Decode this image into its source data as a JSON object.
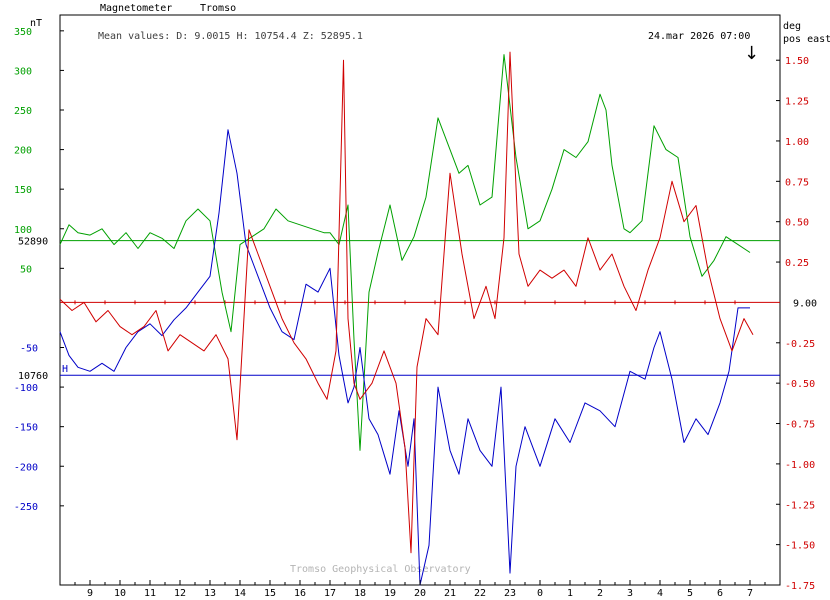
{
  "header": {
    "instrument": "Magnetometer",
    "station": "Tromso",
    "left_unit": "nT",
    "right_unit_1": "deg",
    "right_unit_2": "pos east",
    "mean_values": "Mean values:  D: 9.0015   H: 10754.4   Z: 52895.1",
    "timestamp": "24.mar 2026 07:00",
    "arrow": "↓",
    "footer": "Tromso Geophysical Observatory"
  },
  "colors": {
    "green": "#00a000",
    "blue": "#0000c8",
    "red": "#d00000",
    "frame": "#000000",
    "footer": "#b4b4b4"
  },
  "chart_data": {
    "type": "line",
    "x_label": "",
    "x_ticks": [
      "9",
      "10",
      "11",
      "12",
      "13",
      "14",
      "15",
      "16",
      "17",
      "18",
      "19",
      "20",
      "21",
      "22",
      "23",
      "0",
      "1",
      "2",
      "3",
      "4",
      "5",
      "6",
      "7"
    ],
    "x_hours": [
      9,
      10,
      11,
      12,
      13,
      14,
      15,
      16,
      17,
      18,
      19,
      20,
      21,
      22,
      23,
      24,
      25,
      26,
      27,
      28,
      29,
      30,
      31
    ],
    "x_range": [
      8.0,
      32.0
    ],
    "left_axis": {
      "unit": "nT",
      "range": [
        -350,
        370
      ],
      "green_ticks": [
        "350",
        "300",
        "250",
        "200",
        "150",
        "100",
        "50"
      ],
      "green_tick_values": [
        350,
        300,
        250,
        200,
        150,
        100,
        50
      ],
      "blue_ticks": [
        "-50",
        "-100",
        "-150",
        "-200",
        "-250"
      ],
      "blue_tick_values": [
        -50,
        -100,
        -150,
        -200,
        -250
      ]
    },
    "right_axis": {
      "unit": "deg",
      "range": [
        -1.75,
        1.78
      ],
      "ticks": [
        "1.50",
        "1.25",
        "1.00",
        "0.75",
        "0.50",
        "0.25",
        "-0.25",
        "-0.50",
        "-0.75",
        "-1.00",
        "-1.25",
        "-1.50",
        "-1.75"
      ],
      "tick_values": [
        1.5,
        1.25,
        1.0,
        0.75,
        0.5,
        0.25,
        -0.25,
        -0.5,
        -0.75,
        -1.0,
        -1.25,
        -1.5,
        -1.75
      ],
      "baseline_label": "9.00"
    },
    "baselines": [
      {
        "series": "Z",
        "label": "52890",
        "value_nT": 85
      },
      {
        "series": "H",
        "label": "10760",
        "value_nT": -85,
        "marker": "H"
      },
      {
        "series": "D",
        "label": "9.00",
        "value_deg": 0
      }
    ],
    "series": [
      {
        "name": "Z",
        "color": "green",
        "axis": "left",
        "x": [
          8.0,
          8.3,
          8.6,
          9.0,
          9.4,
          9.8,
          10.2,
          10.6,
          11.0,
          11.4,
          11.8,
          12.2,
          12.6,
          13.0,
          13.4,
          13.7,
          14.0,
          14.4,
          14.8,
          15.2,
          15.6,
          16.0,
          16.4,
          16.8,
          17.0,
          17.3,
          17.6,
          17.8,
          18.0,
          18.3,
          18.6,
          19.0,
          19.4,
          19.8,
          20.2,
          20.6,
          21.0,
          21.3,
          21.6,
          22.0,
          22.4,
          22.8,
          23.2,
          23.6,
          24.0,
          24.4,
          24.8,
          25.2,
          25.6,
          26.0,
          26.2,
          26.4,
          26.8,
          27.0,
          27.4,
          27.8,
          28.2,
          28.6,
          29.0,
          29.4,
          29.8,
          30.2,
          30.6,
          31.0
        ],
        "y": [
          80,
          105,
          95,
          92,
          100,
          80,
          95,
          75,
          95,
          88,
          75,
          110,
          125,
          110,
          20,
          -30,
          80,
          90,
          100,
          125,
          110,
          105,
          100,
          95,
          95,
          80,
          130,
          -40,
          -180,
          20,
          70,
          130,
          60,
          90,
          140,
          240,
          200,
          170,
          180,
          130,
          140,
          320,
          190,
          100,
          110,
          150,
          200,
          190,
          210,
          270,
          250,
          180,
          100,
          95,
          110,
          230,
          200,
          190,
          90,
          40,
          60,
          90,
          80,
          70
        ]
      },
      {
        "name": "H",
        "color": "blue",
        "axis": "left",
        "x": [
          8.0,
          8.3,
          8.6,
          9.0,
          9.4,
          9.8,
          10.2,
          10.6,
          11.0,
          11.4,
          11.8,
          12.2,
          12.6,
          13.0,
          13.3,
          13.6,
          13.9,
          14.2,
          14.6,
          15.0,
          15.4,
          15.8,
          16.2,
          16.6,
          17.0,
          17.3,
          17.6,
          17.8,
          18.0,
          18.3,
          18.6,
          19.0,
          19.3,
          19.6,
          19.8,
          20.0,
          20.3,
          20.6,
          21.0,
          21.3,
          21.6,
          22.0,
          22.4,
          22.7,
          23.0,
          23.2,
          23.5,
          24.0,
          24.5,
          25.0,
          25.5,
          26.0,
          26.5,
          27.0,
          27.5,
          27.8,
          28.0,
          28.4,
          28.8,
          29.2,
          29.6,
          30.0,
          30.3,
          30.6,
          31.0
        ],
        "y": [
          -30,
          -60,
          -75,
          -80,
          -70,
          -80,
          -50,
          -30,
          -20,
          -35,
          -15,
          0,
          20,
          40,
          120,
          225,
          170,
          80,
          40,
          0,
          -30,
          -40,
          30,
          20,
          50,
          -60,
          -120,
          -100,
          -50,
          -140,
          -160,
          -210,
          -130,
          -200,
          -140,
          -350,
          -300,
          -100,
          -180,
          -210,
          -140,
          -180,
          -200,
          -100,
          -335,
          -200,
          -150,
          -200,
          -140,
          -170,
          -120,
          -130,
          -150,
          -80,
          -90,
          -50,
          -30,
          -90,
          -170,
          -140,
          -160,
          -120,
          -80,
          0,
          0
        ]
      },
      {
        "name": "D",
        "color": "red",
        "axis": "right",
        "x": [
          8.0,
          8.4,
          8.8,
          9.2,
          9.6,
          10.0,
          10.4,
          10.8,
          11.2,
          11.6,
          12.0,
          12.4,
          12.8,
          13.2,
          13.6,
          13.9,
          14.1,
          14.3,
          14.6,
          15.0,
          15.4,
          15.8,
          16.2,
          16.6,
          16.9,
          17.2,
          17.45,
          17.6,
          17.8,
          18.0,
          18.4,
          18.8,
          19.2,
          19.5,
          19.7,
          19.9,
          20.2,
          20.6,
          21.0,
          21.4,
          21.8,
          22.2,
          22.5,
          22.8,
          23.0,
          23.3,
          23.6,
          24.0,
          24.4,
          24.8,
          25.2,
          25.6,
          26.0,
          26.4,
          26.8,
          27.2,
          27.6,
          28.0,
          28.4,
          28.8,
          29.2,
          29.6,
          30.0,
          30.4,
          30.8,
          31.1
        ],
        "y": [
          0.02,
          -0.05,
          0.0,
          -0.12,
          -0.05,
          -0.15,
          -0.2,
          -0.15,
          -0.05,
          -0.3,
          -0.2,
          -0.25,
          -0.3,
          -0.2,
          -0.35,
          -0.85,
          -0.2,
          0.45,
          0.3,
          0.1,
          -0.1,
          -0.25,
          -0.35,
          -0.5,
          -0.6,
          -0.3,
          1.5,
          -0.1,
          -0.5,
          -0.6,
          -0.5,
          -0.3,
          -0.5,
          -0.9,
          -1.55,
          -0.4,
          -0.1,
          -0.2,
          0.8,
          0.3,
          -0.1,
          0.1,
          -0.1,
          0.4,
          1.55,
          0.3,
          0.1,
          0.2,
          0.15,
          0.2,
          0.1,
          0.4,
          0.2,
          0.3,
          0.1,
          -0.05,
          0.2,
          0.4,
          0.75,
          0.5,
          0.6,
          0.2,
          -0.1,
          -0.3,
          -0.1,
          -0.2
        ]
      }
    ]
  }
}
